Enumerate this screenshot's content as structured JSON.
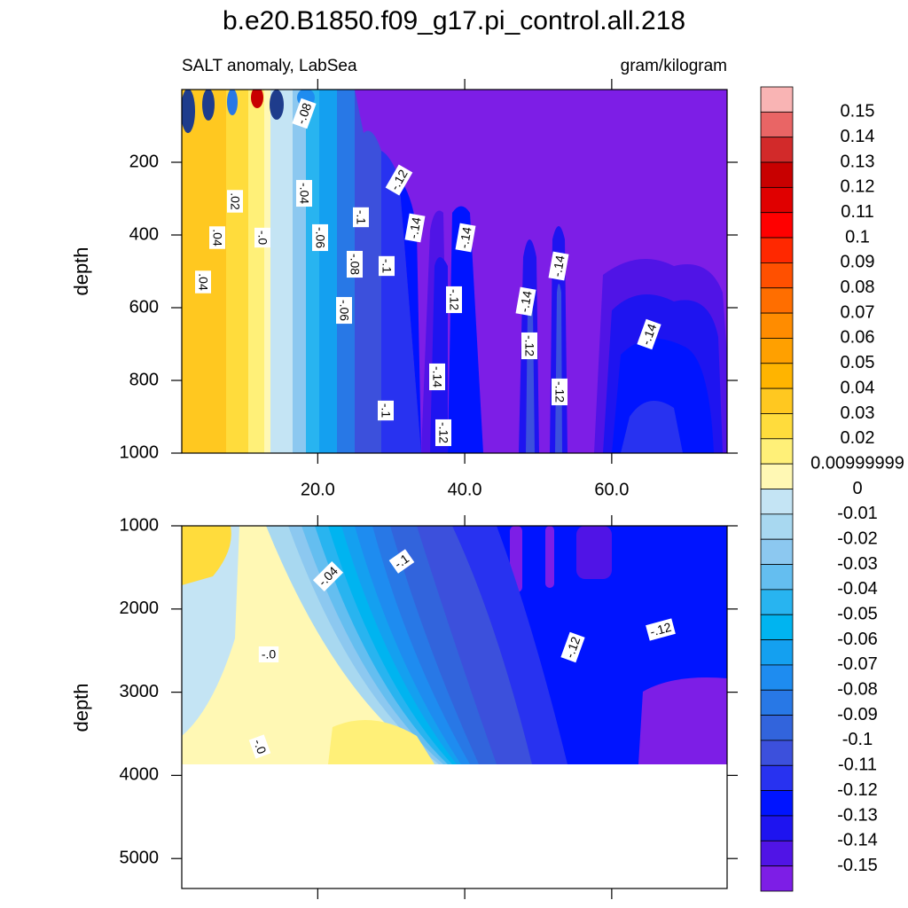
{
  "title": "b.e20.B1850.f09_g17.pi_control.all.218",
  "chart_data": [
    {
      "type": "contour",
      "subtitle_left": "SALT anomaly, LabSea",
      "subtitle_right": "gram/kilogram",
      "ylabel": "depth",
      "xlim": [
        1.5,
        75.7
      ],
      "xticks": [
        {
          "value": 20,
          "label": "20.0"
        },
        {
          "value": 40,
          "label": "40.0"
        },
        {
          "value": 60,
          "label": "60.0"
        }
      ],
      "ylim": [
        0,
        1000
      ],
      "yticks": [
        200,
        400,
        600,
        800,
        1000
      ],
      "contour_labels": [
        "-.08",
        ".02",
        ".04",
        "-.0",
        "-.04",
        "-.06",
        "-.1",
        "-.12",
        "-.14",
        "-.14",
        ".04",
        "-.08",
        "-.1",
        "-.06",
        "-.12",
        "-.14",
        "-.14",
        "-.12",
        "-.14",
        "-.14",
        "-.12",
        "-.1",
        "-.12"
      ]
    },
    {
      "type": "contour",
      "ylabel": "depth",
      "xlim": [
        1.5,
        75.7
      ],
      "ylim": [
        1000,
        5360
      ],
      "yticks": [
        1000,
        2000,
        3000,
        4000,
        5000
      ],
      "contour_labels": [
        "-.04",
        "-.1",
        "-.0",
        "-.0",
        "-.12",
        "-.12"
      ]
    }
  ],
  "colorbar": {
    "levels": [
      0.15,
      0.14,
      0.13,
      0.12,
      0.11,
      0.1,
      0.09,
      0.08,
      0.07,
      0.06,
      0.05,
      0.04,
      0.03,
      0.02,
      0.00999999,
      0,
      -0.01,
      -0.02,
      -0.03,
      -0.04,
      -0.05,
      -0.06,
      -0.07,
      -0.08,
      -0.09,
      -0.1,
      -0.11,
      -0.12,
      -0.13,
      -0.14,
      -0.15
    ],
    "colors": [
      "#f9b4b4",
      "#e96565",
      "#d22a2a",
      "#c80000",
      "#e00000",
      "#ff0000",
      "#ff2800",
      "#ff5000",
      "#ff6e00",
      "#ff8c00",
      "#ffa000",
      "#ffb400",
      "#ffc820",
      "#ffdc3c",
      "#fff078",
      "#fff8b4",
      "#c4e4f4",
      "#a8d8f0",
      "#8cc8f0",
      "#64bef0",
      "#28b4f0",
      "#00b4f0",
      "#14a0f0",
      "#1e8cf0",
      "#2878e6",
      "#3264dc",
      "#3c50dc",
      "#2832f0",
      "#0014ff",
      "#1e14f0",
      "#5014e6",
      "#7d1ee6"
    ]
  }
}
